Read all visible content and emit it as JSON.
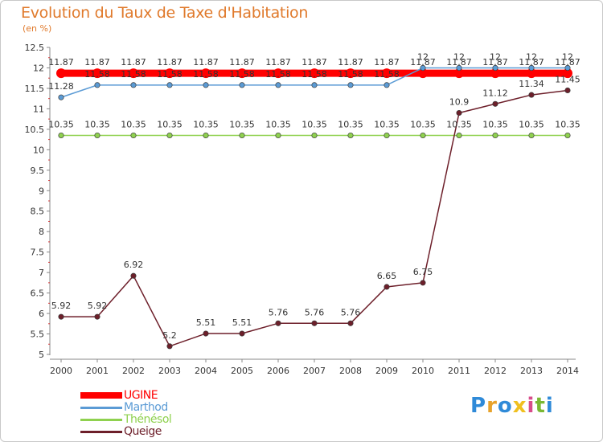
{
  "title": "Evolution du Taux de Taxe d'Habitation",
  "unit_label": "(en %)",
  "brand": {
    "letters": [
      "P",
      "r",
      "o",
      "x",
      "i",
      "t",
      "i"
    ],
    "colors": [
      "#2f8ad8",
      "#e8a22a",
      "#2f8ad8",
      "#f0c020",
      "#d84c8a",
      "#7ab833",
      "#2f8ad8"
    ]
  },
  "chart_data": {
    "type": "line",
    "x": [
      2000,
      2001,
      2002,
      2003,
      2004,
      2005,
      2006,
      2007,
      2008,
      2009,
      2010,
      2011,
      2012,
      2013,
      2014
    ],
    "ylim": [
      5,
      12.5
    ],
    "yticks": [
      5,
      5.5,
      6,
      6.5,
      7,
      7.5,
      8,
      8.5,
      9,
      9.5,
      10,
      10.5,
      11,
      11.5,
      12,
      12.5
    ],
    "grid": false,
    "legend_position": "bottom-left",
    "series": [
      {
        "name": "UGINE",
        "color": "#ff0000",
        "values": [
          11.87,
          11.87,
          11.87,
          11.87,
          11.87,
          11.87,
          11.87,
          11.87,
          11.87,
          11.87,
          11.87,
          11.87,
          11.87,
          11.87,
          11.87
        ],
        "labels": [
          "11.87",
          "11.87",
          "11.87",
          "11.87",
          "11.87",
          "11.87",
          "11.87",
          "11.87",
          "11.87",
          "11.87",
          "11.87",
          "11.87",
          "11.87",
          "11.87",
          "11.87"
        ]
      },
      {
        "name": "Marthod",
        "color": "#5b9bd5",
        "values": [
          11.28,
          11.58,
          11.58,
          11.58,
          11.58,
          11.58,
          11.58,
          11.58,
          11.58,
          11.58,
          12,
          12,
          12,
          12,
          12
        ],
        "labels": [
          "11.28",
          "11.58",
          "11.58",
          "11.58",
          "11.58",
          "11.58",
          "11.58",
          "11.58",
          "11.58",
          "11.58",
          "12",
          "12",
          "12",
          "12",
          "12"
        ]
      },
      {
        "name": "Thénésol",
        "color": "#8fd14f",
        "values": [
          10.35,
          10.35,
          10.35,
          10.35,
          10.35,
          10.35,
          10.35,
          10.35,
          10.35,
          10.35,
          10.35,
          10.35,
          10.35,
          10.35,
          10.35
        ],
        "labels": [
          "10.35",
          "10.35",
          "10.35",
          "10.35",
          "10.35",
          "10.35",
          "10.35",
          "10.35",
          "10.35",
          "10.35",
          "10.35",
          "10.35",
          "10.35",
          "10.35",
          "10.35"
        ]
      },
      {
        "name": "Queige",
        "color": "#6d1f2a",
        "values": [
          5.92,
          5.92,
          6.92,
          5.2,
          5.51,
          5.51,
          5.76,
          5.76,
          5.76,
          6.65,
          6.75,
          10.9,
          11.12,
          11.34,
          11.45
        ],
        "labels": [
          "5.92",
          "5.92",
          "6.92",
          "5.2",
          "5.51",
          "5.51",
          "5.76",
          "5.76",
          "5.76",
          "6.65",
          "6.75",
          "10.9",
          "11.12",
          "11.34",
          "11.45"
        ]
      }
    ]
  }
}
